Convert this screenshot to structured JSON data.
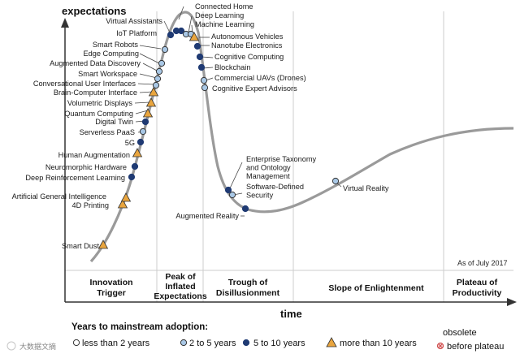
{
  "axis": {
    "y_title": "expectations",
    "x_title": "time"
  },
  "as_of": "As of July 2017",
  "phases": [
    {
      "lines": [
        "Innovation",
        "Trigger"
      ]
    },
    {
      "lines": [
        "Peak of",
        "Inflated",
        "Expectations"
      ]
    },
    {
      "lines": [
        "Trough of",
        "Disillusionment"
      ]
    },
    {
      "lines": [
        "Slope of Enlightenment"
      ]
    },
    {
      "lines": [
        "Plateau of",
        "Productivity"
      ]
    }
  ],
  "legend": {
    "title": "Years to mainstream adoption:",
    "items": [
      {
        "text": "less than 2 years",
        "marker": "circle-white"
      },
      {
        "text": "2 to 5 years",
        "marker": "circle-light"
      },
      {
        "text": "5 to 10 years",
        "marker": "circle-dark"
      },
      {
        "text": "more than 10 years",
        "marker": "triangle"
      }
    ],
    "obsolete": [
      "obsolete",
      "before plateau"
    ]
  },
  "colors": {
    "curve": "#9a9a9a",
    "dark": "#1f3a73",
    "light": "#a9c8e6",
    "triangle": "#e9a53e",
    "grid": "#cccccc"
  },
  "technologies": [
    {
      "name": "Smart Dust",
      "marker": "triangle"
    },
    {
      "name": "4D Printing",
      "marker": "triangle"
    },
    {
      "name": "Artificial General Intelligence",
      "marker": "triangle"
    },
    {
      "name": "Deep Reinforcement Learning",
      "marker": "dark"
    },
    {
      "name": "Neuromorphic Hardware",
      "marker": "dark"
    },
    {
      "name": "Human Augmentation",
      "marker": "triangle"
    },
    {
      "name": "5G",
      "marker": "dark"
    },
    {
      "name": "Serverless PaaS",
      "marker": "light"
    },
    {
      "name": "Digital Twin",
      "marker": "dark"
    },
    {
      "name": "Quantum Computing",
      "marker": "triangle"
    },
    {
      "name": "Volumetric Displays",
      "marker": "triangle"
    },
    {
      "name": "Brain-Computer Interface",
      "marker": "triangle"
    },
    {
      "name": "Conversational User Interfaces",
      "marker": "light"
    },
    {
      "name": "Smart Workspace",
      "marker": "light"
    },
    {
      "name": "Augmented Data Discovery",
      "marker": "light"
    },
    {
      "name": "Edge Computing",
      "marker": "light"
    },
    {
      "name": "Smart Robots",
      "marker": "light"
    },
    {
      "name": "IoT Platform",
      "marker": "dark"
    },
    {
      "name": "Virtual Assistants",
      "marker": "dark"
    },
    {
      "name": "Connected Home",
      "marker": "dark"
    },
    {
      "name": "Deep Learning",
      "marker": "light"
    },
    {
      "name": "Machine Learning",
      "marker": "light"
    },
    {
      "name": "Autonomous Vehicles",
      "marker": "triangle"
    },
    {
      "name": "Nanotube Electronics",
      "marker": "dark"
    },
    {
      "name": "Cognitive Computing",
      "marker": "dark"
    },
    {
      "name": "Blockchain",
      "marker": "dark"
    },
    {
      "name": "Commercial UAVs (Drones)",
      "marker": "light"
    },
    {
      "name": "Cognitive Expert Advisors",
      "marker": "light"
    },
    {
      "name": "Enterprise Taxonomy and Ontology Management",
      "marker": "dark"
    },
    {
      "name": "Software-Defined Security",
      "marker": "light"
    },
    {
      "name": "Augmented Reality",
      "marker": "dark"
    },
    {
      "name": "Virtual Reality",
      "marker": "light"
    }
  ],
  "watermark": "大数据文摘"
}
